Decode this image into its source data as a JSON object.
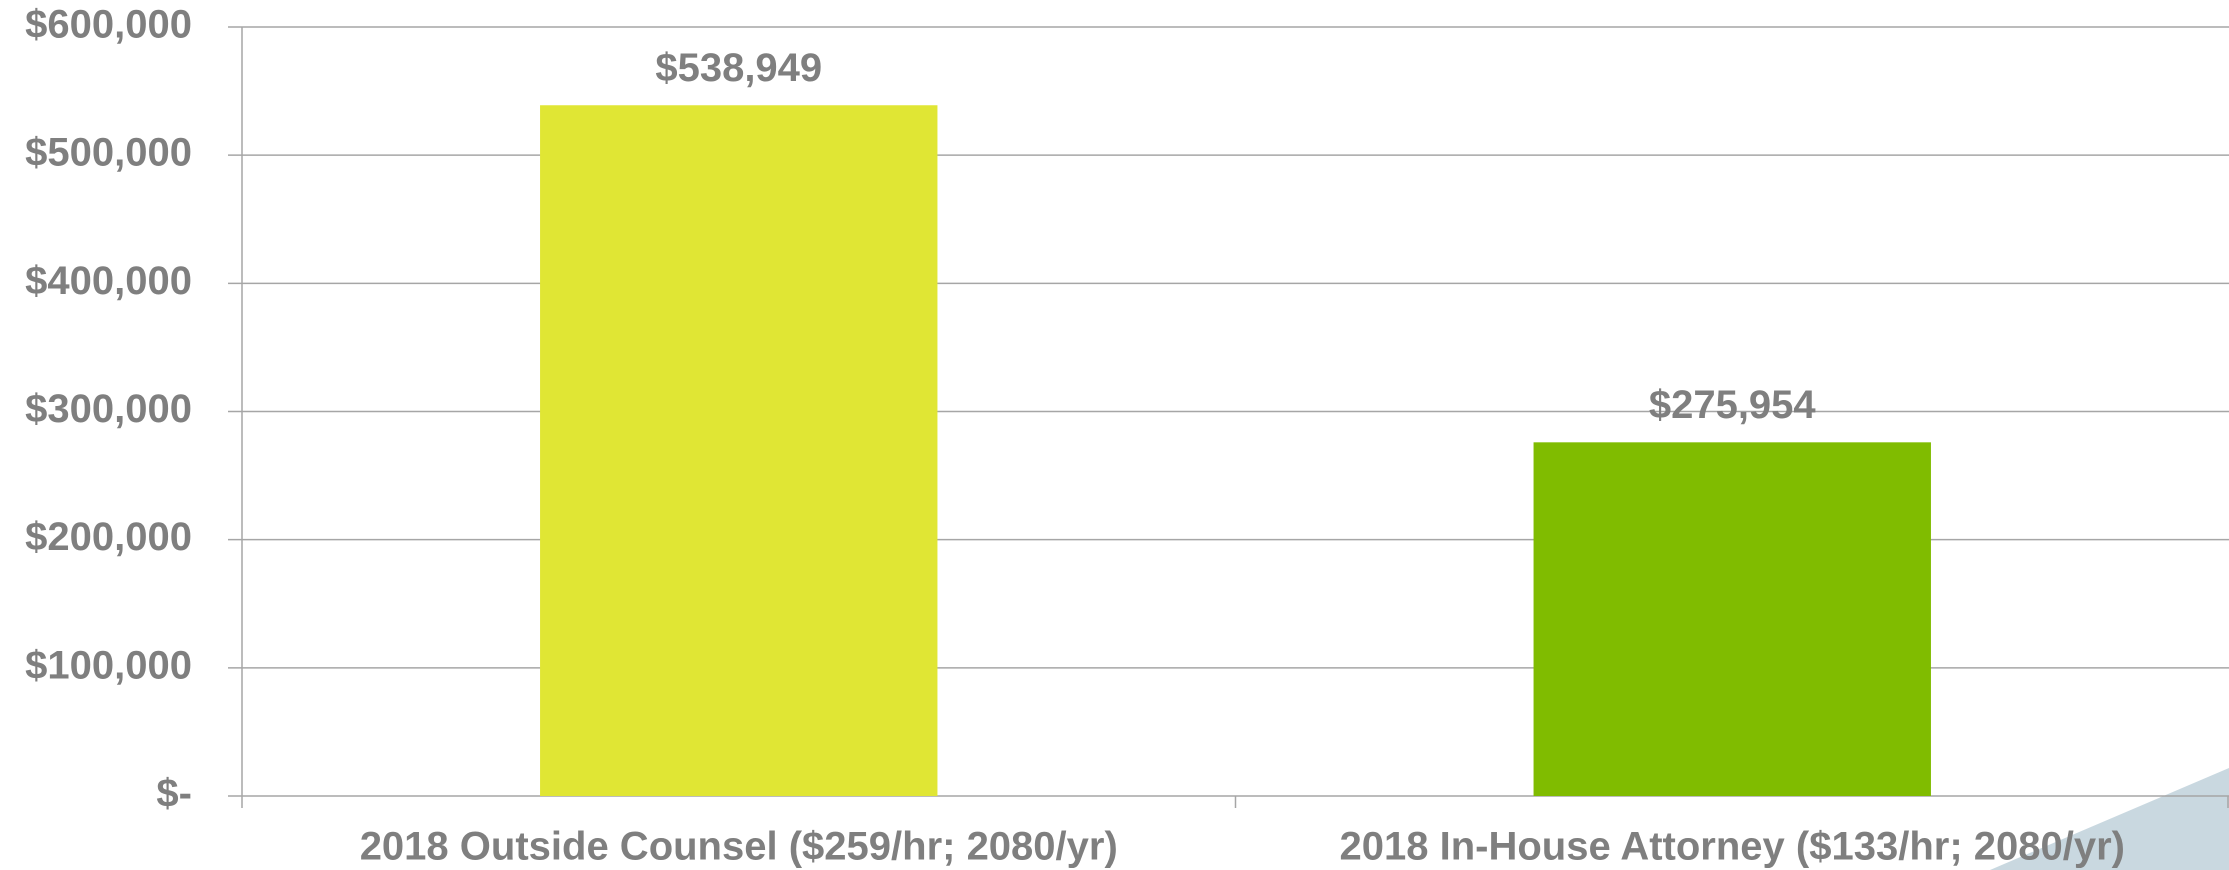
{
  "chart_data": {
    "type": "bar",
    "categories": [
      "2018 Outside Counsel ($259/hr; 2080/yr)",
      "2018 In-House Attorney ($133/hr; 2080/yr)"
    ],
    "values": [
      538949,
      275954
    ],
    "value_labels": [
      "$538,949",
      "$275,954"
    ],
    "colors": [
      "#e0e634",
      "#80bc00"
    ],
    "ylim": [
      0,
      600000
    ],
    "yticks": [
      {
        "value": 0,
        "label": "$-"
      },
      {
        "value": 100000,
        "label": "$100,000"
      },
      {
        "value": 200000,
        "label": "$200,000"
      },
      {
        "value": 300000,
        "label": "$300,000"
      },
      {
        "value": 400000,
        "label": "$400,000"
      },
      {
        "value": 500000,
        "label": "$500,000"
      },
      {
        "value": 600000,
        "label": "$600,000"
      }
    ],
    "grid": true
  }
}
